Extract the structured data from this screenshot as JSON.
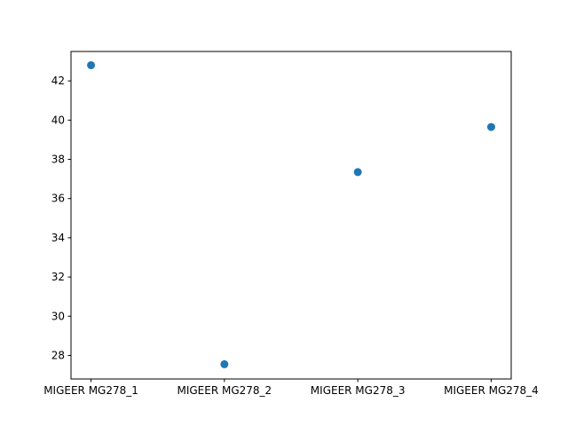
{
  "chart_data": {
    "type": "scatter",
    "title": "",
    "xlabel": "",
    "ylabel": "",
    "categories": [
      "MIGEER MG278_1",
      "MIGEER MG278_2",
      "MIGEER MG278_3",
      "MIGEER MG278_4"
    ],
    "values": [
      42.8,
      27.55,
      37.35,
      39.65
    ],
    "ylim": [
      26.8,
      43.5
    ],
    "yticks": [
      28,
      30,
      32,
      34,
      36,
      38,
      40,
      42
    ],
    "grid": false,
    "legend": "none",
    "colors": {
      "marker": "#1f77b4",
      "axes": "#000000",
      "background": "#ffffff"
    }
  }
}
